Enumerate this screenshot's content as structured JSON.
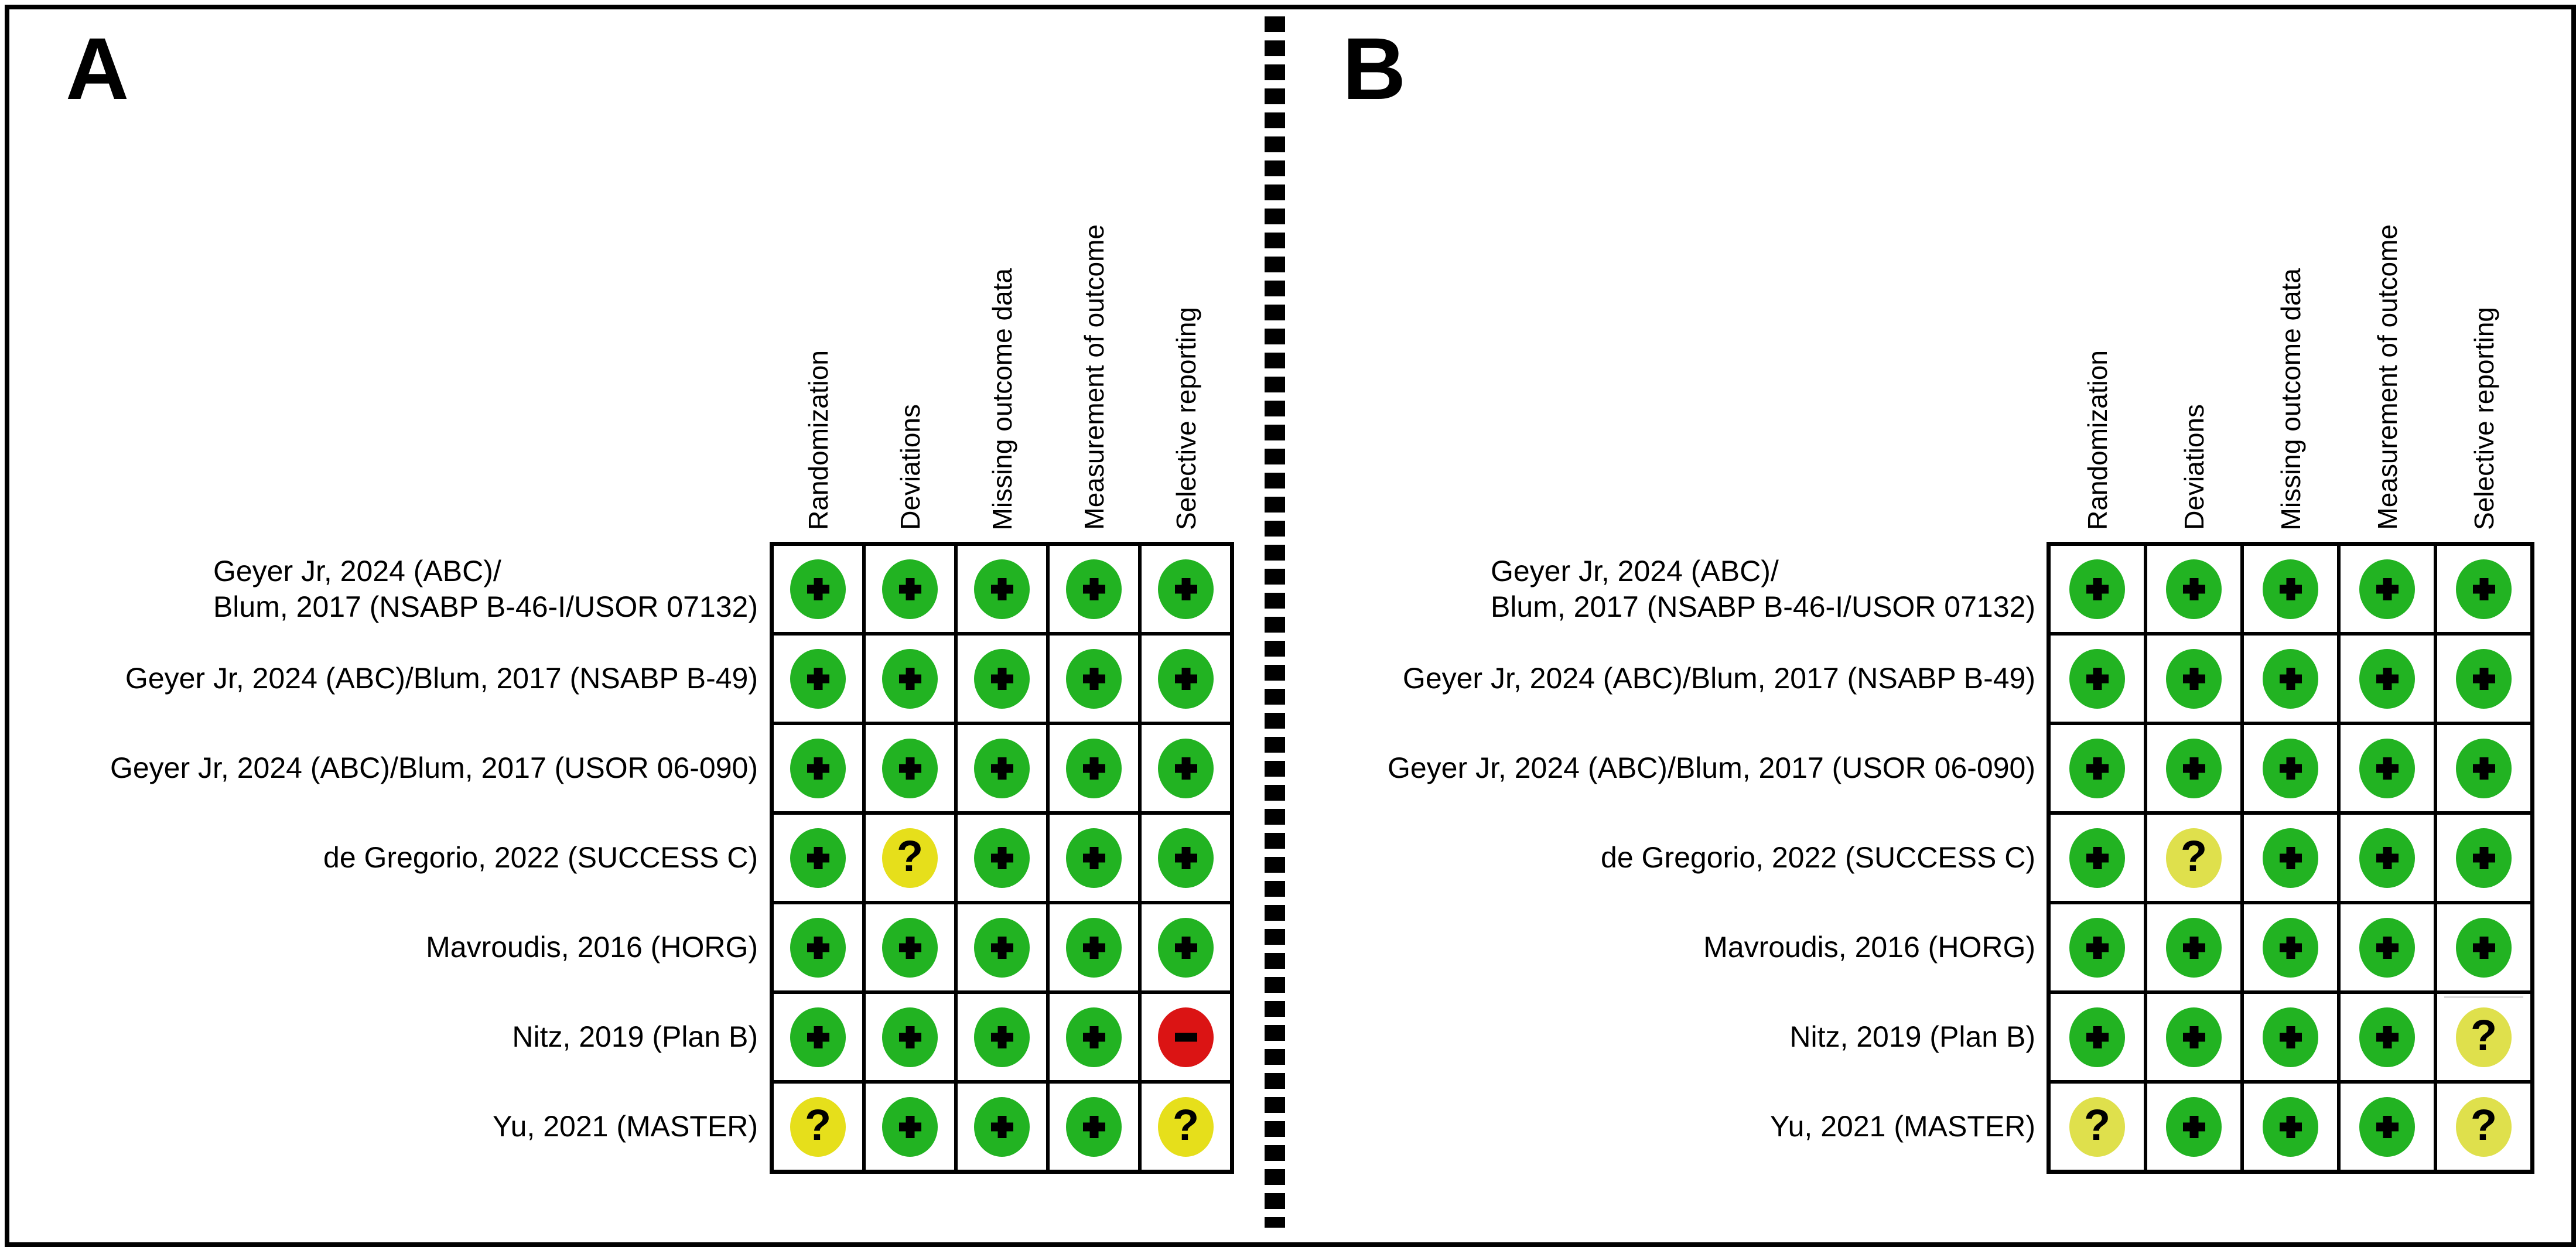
{
  "figure": {
    "columns": [
      "Randomization",
      "Deviations",
      "Missing outcome data",
      "Measurement of outcome",
      "Selective reporting"
    ],
    "studies": [
      [
        "Geyer Jr, 2024 (ABC)/",
        "Blum, 2017 (NSABP B-46-I/USOR 07132)"
      ],
      [
        "Geyer Jr, 2024 (ABC)/Blum, 2017 (NSABP B-49)"
      ],
      [
        "Geyer Jr, 2024 (ABC)/Blum, 2017 (USOR 06-090)"
      ],
      [
        "de Gregorio, 2022 (SUCCESS C)"
      ],
      [
        "Mavroudis, 2016 (HORG)"
      ],
      [
        "Nitz, 2019 (Plan B)"
      ],
      [
        "Yu, 2021 (MASTER)"
      ]
    ]
  },
  "panels": [
    {
      "key": "a",
      "label": "A",
      "unclear_color": "#e6df1b",
      "judgments": [
        [
          "+",
          "+",
          "+",
          "+",
          "+"
        ],
        [
          "+",
          "+",
          "+",
          "+",
          "+"
        ],
        [
          "+",
          "+",
          "+",
          "+",
          "+"
        ],
        [
          "+",
          "?",
          "+",
          "+",
          "+"
        ],
        [
          "+",
          "+",
          "+",
          "+",
          "+"
        ],
        [
          "+",
          "+",
          "+",
          "+",
          "-"
        ],
        [
          "?",
          "+",
          "+",
          "+",
          "?"
        ]
      ]
    },
    {
      "key": "b",
      "label": "B",
      "unclear_color": "#dfe04c",
      "faint_line_cell": [
        5,
        4
      ],
      "judgments": [
        [
          "+",
          "+",
          "+",
          "+",
          "+"
        ],
        [
          "+",
          "+",
          "+",
          "+",
          "+"
        ],
        [
          "+",
          "+",
          "+",
          "+",
          "+"
        ],
        [
          "+",
          "?",
          "+",
          "+",
          "+"
        ],
        [
          "+",
          "+",
          "+",
          "+",
          "+"
        ],
        [
          "+",
          "+",
          "+",
          "+",
          "?"
        ],
        [
          "?",
          "+",
          "+",
          "+",
          "?"
        ]
      ]
    }
  ],
  "colors": {
    "positive_green": "#22b322",
    "negative_red": "#db1414",
    "symbol_black": "#000000",
    "grid_line_black": "#000000"
  },
  "chart_data": [
    {
      "type": "table",
      "title": "A",
      "columns": [
        "Randomization",
        "Deviations",
        "Missing outcome data",
        "Measurement of outcome",
        "Selective reporting"
      ],
      "rows": [
        "Geyer Jr, 2024 (ABC)/Blum, 2017 (NSABP B-46-I/USOR 07132)",
        "Geyer Jr, 2024 (ABC)/Blum, 2017 (NSABP B-49)",
        "Geyer Jr, 2024 (ABC)/Blum, 2017 (USOR 06-090)",
        "de Gregorio, 2022 (SUCCESS C)",
        "Mavroudis, 2016 (HORG)",
        "Nitz, 2019 (Plan B)",
        "Yu, 2021 (MASTER)"
      ],
      "values": [
        [
          "+",
          "+",
          "+",
          "+",
          "+"
        ],
        [
          "+",
          "+",
          "+",
          "+",
          "+"
        ],
        [
          "+",
          "+",
          "+",
          "+",
          "+"
        ],
        [
          "+",
          "?",
          "+",
          "+",
          "+"
        ],
        [
          "+",
          "+",
          "+",
          "+",
          "+"
        ],
        [
          "+",
          "+",
          "+",
          "+",
          "-"
        ],
        [
          "?",
          "+",
          "+",
          "+",
          "?"
        ]
      ]
    },
    {
      "type": "table",
      "title": "B",
      "columns": [
        "Randomization",
        "Deviations",
        "Missing outcome data",
        "Measurement of outcome",
        "Selective reporting"
      ],
      "rows": [
        "Geyer Jr, 2024 (ABC)/Blum, 2017 (NSABP B-46-I/USOR 07132)",
        "Geyer Jr, 2024 (ABC)/Blum, 2017 (NSABP B-49)",
        "Geyer Jr, 2024 (ABC)/Blum, 2017 (USOR 06-090)",
        "de Gregorio, 2022 (SUCCESS C)",
        "Mavroudis, 2016 (HORG)",
        "Nitz, 2019 (Plan B)",
        "Yu, 2021 (MASTER)"
      ],
      "values": [
        [
          "+",
          "+",
          "+",
          "+",
          "+"
        ],
        [
          "+",
          "+",
          "+",
          "+",
          "+"
        ],
        [
          "+",
          "+",
          "+",
          "+",
          "+"
        ],
        [
          "+",
          "?",
          "+",
          "+",
          "+"
        ],
        [
          "+",
          "+",
          "+",
          "+",
          "+"
        ],
        [
          "+",
          "+",
          "+",
          "+",
          "?"
        ],
        [
          "?",
          "+",
          "+",
          "+",
          "?"
        ]
      ]
    }
  ]
}
